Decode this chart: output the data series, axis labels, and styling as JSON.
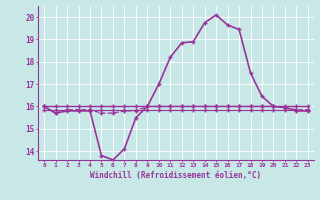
{
  "xlabel": "Windchill (Refroidissement éolien,°C)",
  "bg_color": "#c8e8e8",
  "line_color": "#993399",
  "grid_color": "#ffffff",
  "hours": [
    0,
    1,
    2,
    3,
    4,
    5,
    6,
    7,
    8,
    9,
    10,
    11,
    12,
    13,
    14,
    15,
    16,
    17,
    18,
    19,
    20,
    21,
    22,
    23
  ],
  "windchill": [
    16.0,
    15.7,
    15.8,
    15.8,
    15.8,
    13.8,
    13.6,
    14.1,
    15.5,
    16.0,
    17.0,
    18.2,
    18.85,
    18.9,
    19.75,
    20.1,
    19.65,
    19.45,
    17.5,
    16.45,
    16.0,
    15.95,
    15.8,
    15.8
  ],
  "temp": [
    16.0,
    15.7,
    15.85,
    15.85,
    15.85,
    15.7,
    15.7,
    15.8,
    15.8,
    16.0,
    16.0,
    16.0,
    16.0,
    16.0,
    16.0,
    16.0,
    16.0,
    16.0,
    16.0,
    16.0,
    16.0,
    15.95,
    15.85,
    15.85
  ],
  "flat1": [
    16.0,
    16.0,
    16.0,
    16.0,
    16.0,
    16.0,
    16.0,
    16.0,
    16.0,
    16.0,
    16.0,
    16.0,
    16.0,
    16.0,
    16.0,
    16.0,
    16.0,
    16.0,
    16.0,
    16.0,
    16.0,
    16.0,
    16.0,
    16.0
  ],
  "flat2": [
    15.85,
    15.85,
    15.85,
    15.85,
    15.85,
    15.85,
    15.85,
    15.85,
    15.85,
    15.85,
    15.85,
    15.85,
    15.85,
    15.85,
    15.85,
    15.85,
    15.85,
    15.85,
    15.85,
    15.85,
    15.85,
    15.85,
    15.85,
    15.85
  ],
  "ylim_min": 13.6,
  "ylim_max": 20.5,
  "yticks": [
    14,
    15,
    16,
    17,
    18,
    19,
    20
  ]
}
